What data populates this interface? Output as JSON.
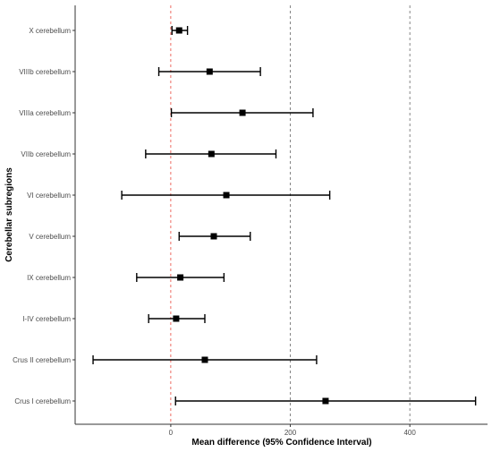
{
  "chart_data": {
    "type": "forest",
    "title": "",
    "xlabel": "Mean difference (95% Confidence Interval)",
    "ylabel": "Cerebellar subregions",
    "xlim": [
      -160,
      530
    ],
    "xticks": [
      0,
      200,
      400
    ],
    "reference_lines": [
      {
        "x": 0,
        "color": "#e8473c",
        "style": "dashed"
      },
      {
        "x": 200,
        "color": "#666666",
        "style": "dashed"
      },
      {
        "x": 400,
        "color": "#666666",
        "style": "dashed"
      }
    ],
    "grid": false,
    "rows": [
      {
        "label": "X cerebellum",
        "mean": 14,
        "lower": 2,
        "upper": 28
      },
      {
        "label": "VIIIb cerebellum",
        "mean": 65,
        "lower": -20,
        "upper": 150
      },
      {
        "label": "VIIIa cerebellum",
        "mean": 120,
        "lower": 1,
        "upper": 238
      },
      {
        "label": "VIIb cerebellum",
        "mean": 68,
        "lower": -42,
        "upper": 176
      },
      {
        "label": "VI cerebellum",
        "mean": 93,
        "lower": -82,
        "upper": 266
      },
      {
        "label": "V cerebellum",
        "mean": 72,
        "lower": 14,
        "upper": 133
      },
      {
        "label": "IX cerebellum",
        "mean": 16,
        "lower": -57,
        "upper": 89
      },
      {
        "label": "I-IV cerebellum",
        "mean": 9,
        "lower": -37,
        "upper": 57
      },
      {
        "label": "Crus II cerebellum",
        "mean": 57,
        "lower": -130,
        "upper": 244
      },
      {
        "label": "Crus I cerebellum",
        "mean": 259,
        "lower": 8,
        "upper": 510
      }
    ]
  }
}
